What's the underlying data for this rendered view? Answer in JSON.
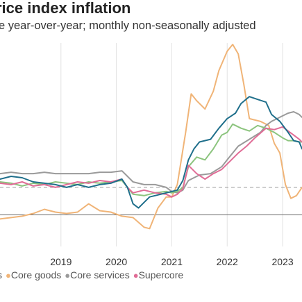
{
  "title": "rice index inflation",
  "subtitle": "e year-over-year; monthly non-seasonally adjusted",
  "colors": {
    "grid": "#e2e2e2",
    "reference": "#9a9a9a",
    "zero": "#666666"
  },
  "chart_data": {
    "type": "line",
    "xlim": [
      2017.9,
      2023.35
    ],
    "ylim": [
      -2.3,
      12.5
    ],
    "x_ticks": [
      "2019",
      "2020",
      "2021",
      "2022",
      "2023"
    ],
    "x_tick_values": [
      2019,
      2020,
      2021,
      2022,
      2023
    ],
    "reference_line": 2.0,
    "zero_line": 0,
    "legend": [
      {
        "label": "s",
        "color": "#888888",
        "dot": false
      },
      {
        "label": "Core goods",
        "color": "#f0b477",
        "dot": true
      },
      {
        "label": "Core services",
        "color": "#9a9a9a",
        "dot": true
      },
      {
        "label": "Supercore",
        "color": "#e06c96",
        "dot": true
      }
    ],
    "series": [
      {
        "color": "#f0b477",
        "x": [
          2017.9,
          2018.1,
          2018.3,
          2018.5,
          2018.7,
          2018.9,
          2019.1,
          2019.3,
          2019.5,
          2019.7,
          2019.9,
          2020.1,
          2020.3,
          2020.5,
          2020.6,
          2020.75,
          2020.9,
          2021.0,
          2021.1,
          2021.25,
          2021.35,
          2021.45,
          2021.6,
          2021.75,
          2021.85,
          2022.0,
          2022.1,
          2022.2,
          2022.3,
          2022.4,
          2022.5,
          2022.6,
          2022.75,
          2022.85,
          2022.95,
          2023.05,
          2023.15,
          2023.25,
          2023.35
        ],
        "y": [
          -0.3,
          -0.2,
          -0.1,
          0.1,
          0.4,
          0.2,
          0.1,
          0.2,
          0.8,
          0.3,
          0.2,
          -0.1,
          -0.2,
          -0.9,
          -1.0,
          0.5,
          1.3,
          1.3,
          2.2,
          6.0,
          8.8,
          8.3,
          7.7,
          9.0,
          10.5,
          11.9,
          12.4,
          11.7,
          9.5,
          7.0,
          6.9,
          6.8,
          6.5,
          5.2,
          4.5,
          2.2,
          1.2,
          1.4,
          2.0
        ]
      },
      {
        "color": "#9a9a9a",
        "x": [
          2017.9,
          2018.1,
          2018.3,
          2018.5,
          2018.7,
          2018.9,
          2019.1,
          2019.3,
          2019.5,
          2019.7,
          2019.9,
          2020.1,
          2020.2,
          2020.3,
          2020.5,
          2020.7,
          2020.9,
          2021.0,
          2021.1,
          2021.2,
          2021.3,
          2021.5,
          2021.7,
          2021.9,
          2022.0,
          2022.2,
          2022.4,
          2022.6,
          2022.7,
          2022.8,
          2022.9,
          2023.0,
          2023.1,
          2023.2,
          2023.3,
          2023.35
        ],
        "y": [
          3.0,
          3.1,
          3.0,
          3.0,
          3.1,
          3.0,
          3.0,
          3.0,
          3.0,
          3.1,
          3.1,
          3.2,
          2.8,
          2.4,
          2.2,
          2.2,
          2.0,
          1.7,
          1.6,
          1.8,
          2.5,
          2.9,
          3.0,
          3.5,
          4.0,
          5.0,
          5.5,
          6.0,
          6.5,
          6.8,
          7.0,
          7.2,
          7.4,
          7.5,
          7.3,
          7.1
        ]
      },
      {
        "color": "#8cc47e",
        "x": [
          2017.9,
          2018.1,
          2018.3,
          2018.5,
          2018.7,
          2018.9,
          2019.1,
          2019.3,
          2019.5,
          2019.7,
          2019.9,
          2020.1,
          2020.2,
          2020.3,
          2020.5,
          2020.7,
          2020.9,
          2021.0,
          2021.1,
          2021.2,
          2021.3,
          2021.45,
          2021.6,
          2021.75,
          2021.9,
          2022.0,
          2022.1,
          2022.25,
          2022.4,
          2022.55,
          2022.7,
          2022.85,
          2023.0,
          2023.1,
          2023.2,
          2023.3,
          2023.35
        ],
        "y": [
          2.4,
          2.3,
          2.1,
          2.3,
          2.2,
          2.4,
          2.3,
          2.2,
          2.4,
          2.3,
          2.4,
          2.5,
          2.0,
          1.5,
          1.4,
          1.6,
          1.7,
          1.6,
          1.7,
          2.0,
          3.5,
          4.2,
          4.0,
          4.8,
          5.8,
          6.0,
          6.6,
          6.3,
          6.1,
          6.5,
          6.3,
          6.0,
          5.6,
          5.4,
          5.4,
          5.3,
          5.3
        ]
      },
      {
        "color": "#e06c96",
        "x": [
          2017.9,
          2018.1,
          2018.3,
          2018.5,
          2018.7,
          2018.9,
          2019.1,
          2019.3,
          2019.5,
          2019.7,
          2019.9,
          2020.1,
          2020.2,
          2020.3,
          2020.5,
          2020.7,
          2020.9,
          2021.0,
          2021.1,
          2021.2,
          2021.3,
          2021.45,
          2021.6,
          2021.75,
          2021.9,
          2022.05,
          2022.2,
          2022.35,
          2022.5,
          2022.7,
          2022.85,
          2023.0,
          2023.1,
          2023.2,
          2023.3,
          2023.35
        ],
        "y": [
          2.3,
          2.2,
          2.4,
          2.1,
          2.2,
          2.0,
          2.2,
          2.4,
          2.3,
          2.5,
          2.4,
          2.6,
          2.0,
          1.6,
          1.8,
          1.6,
          1.5,
          1.3,
          1.5,
          1.9,
          3.6,
          3.0,
          2.6,
          3.0,
          3.3,
          3.9,
          4.5,
          5.0,
          5.6,
          6.3,
          6.2,
          6.4,
          6.1,
          5.8,
          5.5,
          5.3
        ]
      },
      {
        "color": "#1f6f8b",
        "x": [
          2017.9,
          2018.1,
          2018.3,
          2018.5,
          2018.7,
          2018.9,
          2019.1,
          2019.3,
          2019.5,
          2019.7,
          2019.9,
          2020.1,
          2020.2,
          2020.3,
          2020.4,
          2020.5,
          2020.6,
          2020.8,
          2021.0,
          2021.1,
          2021.2,
          2021.3,
          2021.4,
          2021.5,
          2021.7,
          2021.85,
          2022.0,
          2022.15,
          2022.25,
          2022.4,
          2022.55,
          2022.7,
          2022.8,
          2022.95,
          2023.1,
          2023.2,
          2023.3,
          2023.35
        ],
        "y": [
          2.6,
          2.8,
          2.7,
          2.4,
          2.3,
          2.2,
          2.0,
          2.2,
          2.0,
          2.2,
          2.3,
          2.6,
          2.0,
          0.8,
          0.5,
          0.9,
          1.3,
          1.5,
          1.7,
          1.8,
          2.5,
          4.0,
          4.8,
          5.3,
          5.5,
          6.3,
          7.0,
          7.4,
          8.1,
          8.6,
          8.4,
          8.2,
          7.3,
          6.8,
          6.0,
          5.4,
          5.3,
          4.8
        ]
      }
    ]
  }
}
